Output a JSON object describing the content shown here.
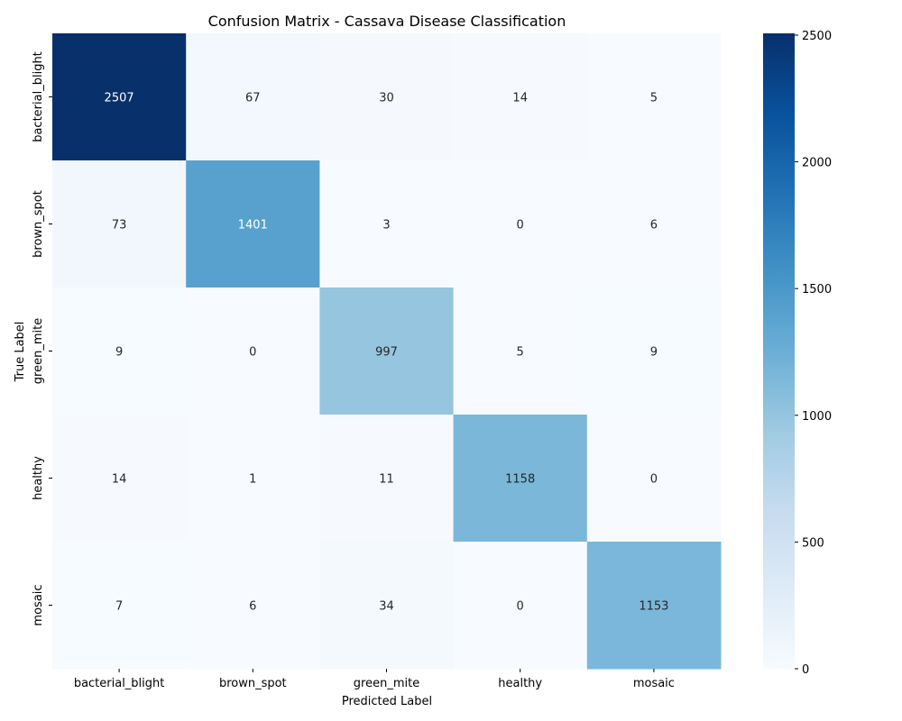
{
  "chart_data": {
    "type": "heatmap",
    "title": "Confusion Matrix - Cassava Disease Classification",
    "xlabel": "Predicted Label",
    "ylabel": "True Label",
    "x_categories": [
      "bacterial_blight",
      "brown_spot",
      "green_mite",
      "healthy",
      "mosaic"
    ],
    "y_categories": [
      "bacterial_blight",
      "brown_spot",
      "green_mite",
      "healthy",
      "mosaic"
    ],
    "values": [
      [
        2507,
        67,
        30,
        14,
        5
      ],
      [
        73,
        1401,
        3,
        0,
        6
      ],
      [
        9,
        0,
        997,
        5,
        9
      ],
      [
        14,
        1,
        11,
        1158,
        0
      ],
      [
        7,
        6,
        34,
        0,
        1153
      ]
    ],
    "colormap": "Blues",
    "color_low": "#f7fbff",
    "color_high": "#08306b",
    "colorbar": {
      "range": [
        0,
        2507
      ],
      "ticks": [
        0,
        500,
        1000,
        1500,
        2000,
        2500
      ]
    },
    "annotations": true
  }
}
